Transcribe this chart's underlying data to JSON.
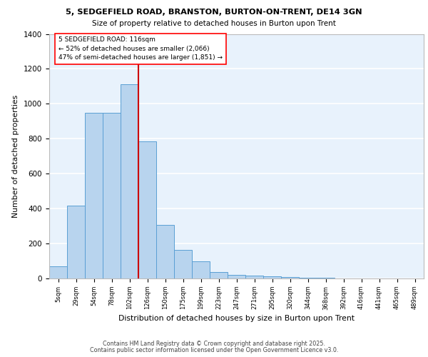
{
  "title1": "5, SEDGEFIELD ROAD, BRANSTON, BURTON-ON-TRENT, DE14 3GN",
  "title2": "Size of property relative to detached houses in Burton upon Trent",
  "xlabel": "Distribution of detached houses by size in Burton upon Trent",
  "ylabel": "Number of detached properties",
  "bar_labels": [
    "5sqm",
    "29sqm",
    "54sqm",
    "78sqm",
    "102sqm",
    "126sqm",
    "150sqm",
    "175sqm",
    "199sqm",
    "223sqm",
    "247sqm",
    "271sqm",
    "295sqm",
    "320sqm",
    "344sqm",
    "368sqm",
    "392sqm",
    "416sqm",
    "441sqm",
    "465sqm",
    "489sqm"
  ],
  "bar_values": [
    70,
    415,
    950,
    950,
    1110,
    785,
    305,
    163,
    100,
    38,
    22,
    18,
    13,
    7,
    3,
    3,
    0,
    0,
    0,
    0,
    0
  ],
  "bar_color": "#b8d4ee",
  "bar_edge_color": "#5a9fd4",
  "background_color": "#e8f2fc",
  "grid_color": "#ffffff",
  "vline_color": "#cc0000",
  "vline_x": 4.5,
  "annotation_text": "5 SEDGEFIELD ROAD: 116sqm\n← 52% of detached houses are smaller (2,066)\n47% of semi-detached houses are larger (1,851) →",
  "ylim": [
    0,
    1400
  ],
  "yticks": [
    0,
    200,
    400,
    600,
    800,
    1000,
    1200,
    1400
  ],
  "footer1": "Contains HM Land Registry data © Crown copyright and database right 2025.",
  "footer2": "Contains public sector information licensed under the Open Government Licence v3.0."
}
